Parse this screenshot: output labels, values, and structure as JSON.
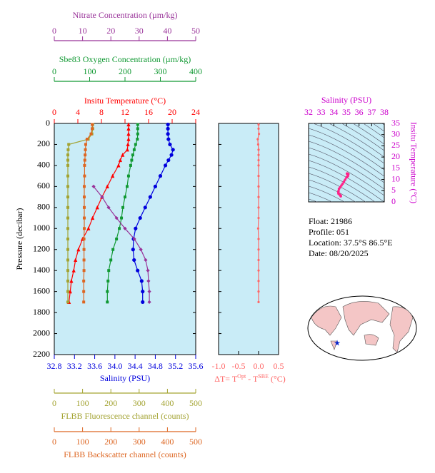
{
  "chart_data": [
    {
      "type": "profile",
      "ylabel": "Pressure (decibar)",
      "ylim": [
        0,
        2200
      ],
      "yticks": [
        0,
        200,
        400,
        600,
        800,
        1000,
        1200,
        1400,
        1600,
        1800,
        2000,
        2200
      ],
      "pressure": [
        10,
        50,
        100,
        150,
        200,
        250,
        300,
        350,
        400,
        500,
        600,
        700,
        800,
        900,
        1000,
        1100,
        1200,
        1300,
        1400,
        1500,
        1600,
        1700
      ],
      "series": [
        {
          "name": "Insitu Temperature (°C)",
          "color": "#ff0000",
          "marker": "triangle",
          "xlim": [
            0,
            24
          ],
          "xticks": [
            0,
            4,
            8,
            12,
            16,
            20,
            24
          ],
          "values": [
            12.6,
            12.6,
            12.6,
            12.6,
            12.5,
            12.4,
            11.6,
            11.2,
            10.9,
            9.9,
            9.0,
            8.1,
            7.3,
            6.5,
            5.8,
            4.8,
            4.1,
            3.6,
            3.3,
            2.9,
            2.7,
            2.5
          ]
        },
        {
          "name": "Salinity (PSU)",
          "color": "#0000dd",
          "marker": "circle",
          "xlim": [
            32.8,
            35.6
          ],
          "xticks": [
            32.8,
            33.2,
            33.6,
            {
              "value": 34,
              "label": "34.0"
            },
            34.4,
            34.8,
            35.2,
            35.6
          ],
          "values": [
            35.05,
            35.05,
            35.05,
            35.06,
            35.09,
            35.15,
            35.12,
            35.06,
            35.0,
            34.9,
            34.8,
            34.7,
            34.6,
            34.5,
            34.41,
            34.37,
            34.36,
            34.38,
            34.45,
            34.53,
            34.55,
            34.55
          ]
        },
        {
          "name": "Sbe83 Oxygen Concentration (µm/kg)",
          "color": "#119933",
          "marker": "square",
          "xlim": [
            0,
            400
          ],
          "xticks": [
            0,
            100,
            200,
            300,
            400
          ],
          "values": [
            236,
            236,
            236,
            235,
            230,
            226,
            222,
            219,
            216,
            210,
            206,
            200,
            194,
            190,
            184,
            176,
            166,
            160,
            154,
            152,
            150,
            150
          ]
        },
        {
          "name": "Nitrate Concentration (µm/kg)",
          "color": "#993399",
          "marker": "diamond",
          "xlim": [
            0,
            50
          ],
          "xticks": [
            0,
            10,
            20,
            30,
            40,
            50
          ],
          "values": [
            null,
            null,
            null,
            null,
            null,
            null,
            null,
            null,
            null,
            null,
            13.9,
            16.9,
            19.2,
            22.0,
            25.0,
            28.3,
            30.6,
            32.3,
            33.1,
            33.3,
            33.6,
            33.6
          ]
        },
        {
          "name": "FLBB Fluorescence channel (counts)",
          "color": "#a3a332",
          "marker": "square",
          "xlim": [
            0,
            500
          ],
          "xticks": [
            0,
            100,
            200,
            300,
            400,
            500
          ],
          "values": [
            136,
            136,
            133,
            120,
            51,
            49,
            48,
            48,
            48,
            48,
            48,
            48,
            48,
            48,
            48,
            48,
            48,
            48,
            48,
            48,
            48,
            48
          ]
        },
        {
          "name": "FLBB Backscatter channel (counts)",
          "color": "#dd6622",
          "marker": "square",
          "xlim": [
            0,
            500
          ],
          "xticks": [
            0,
            100,
            200,
            300,
            400,
            500
          ],
          "values": [
            134,
            134,
            130,
            116,
            111,
            110,
            109,
            108,
            107,
            107,
            106,
            106,
            106,
            106,
            106,
            105,
            105,
            105,
            105,
            104,
            104,
            104
          ]
        }
      ]
    },
    {
      "type": "profile-diff",
      "color": "#ff6666",
      "xlabel": [
        "ΔT= T",
        "Opt",
        " - T",
        "SBE",
        " (°C)"
      ],
      "xlim": [
        -1.0,
        0.5
      ],
      "xticks": [
        {
          "value": -1.0,
          "label": "-1.0"
        },
        {
          "value": -0.5,
          "label": "-0.5"
        },
        {
          "value": 0.0,
          "label": "0.0"
        },
        0.5
      ],
      "values": [
        0.0,
        0.0,
        0.01,
        -0.02,
        -0.01,
        0.0,
        0.0,
        0.0,
        0.0,
        0.0,
        0.0,
        0.0,
        0.0,
        0.0,
        -0.01,
        0.0,
        0.0,
        0.0,
        0.0,
        0.0,
        0.0,
        0.0
      ]
    },
    {
      "type": "ts",
      "color": "#ff2288",
      "axis_color": "#cc00cc",
      "xlabel": "Salinity (PSU)",
      "ylabel": "Insitu Temperature (°C)",
      "xlim": [
        32,
        38
      ],
      "xticks": [
        32,
        33,
        34,
        35,
        36,
        37,
        38
      ],
      "ylim": [
        0,
        35
      ],
      "yticks": [
        0,
        5,
        10,
        15,
        20,
        25,
        30,
        35
      ]
    }
  ],
  "info": [
    "Float:  21986",
    "Profile:  051",
    "Location:  37.5°S  86.5°E",
    "Date:  08/20/2025"
  ]
}
